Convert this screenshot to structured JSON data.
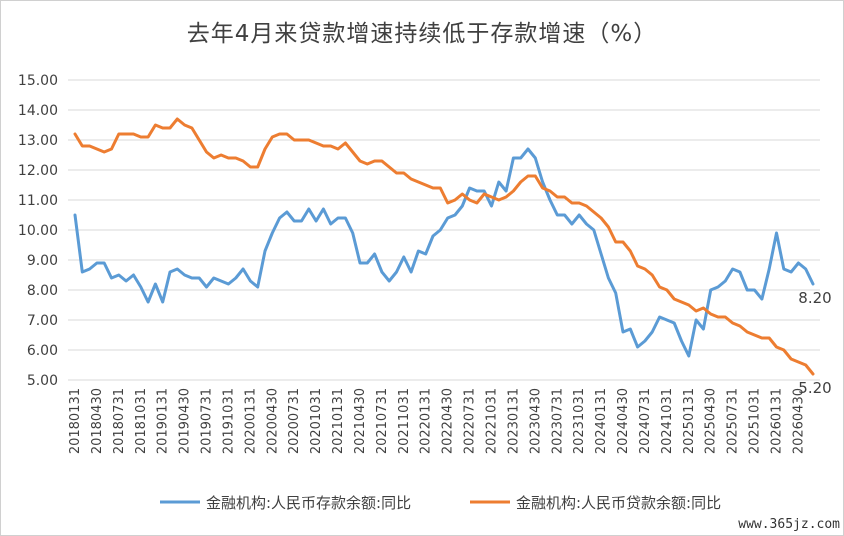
{
  "chart_data": {
    "type": "line",
    "title": "去年4月来贷款增速持续低于存款增速（%）",
    "xlabel": "",
    "ylabel": "",
    "ylim": [
      5.0,
      15.0
    ],
    "yticks": [
      "15.00",
      "14.00",
      "13.00",
      "12.00",
      "11.00",
      "10.00",
      "9.00",
      "8.00",
      "7.00",
      "6.00",
      "5.00"
    ],
    "grid": true,
    "legend_position": "bottom",
    "x": [
      "20180131",
      "20180228",
      "20180331",
      "20180430",
      "20180531",
      "20180630",
      "20180731",
      "20180831",
      "20180930",
      "20181031",
      "20181130",
      "20181231",
      "20190131",
      "20190228",
      "20190331",
      "20190430",
      "20190531",
      "20190630",
      "20190731",
      "20190831",
      "20190930",
      "20191031",
      "20191130",
      "20191231",
      "20200131",
      "20200229",
      "20200331",
      "20200430",
      "20200531",
      "20200630",
      "20200731",
      "20200831",
      "20200930",
      "20201031",
      "20201130",
      "20201231",
      "20210131",
      "20210228",
      "20210331",
      "20210430",
      "20210531",
      "20210630",
      "20210731",
      "20210831",
      "20210930",
      "20211031",
      "20211130",
      "20211231",
      "20220131",
      "20220228",
      "20220331",
      "20220430",
      "20220531",
      "20220630",
      "20220731",
      "20220831",
      "20220930",
      "20221031",
      "20221130",
      "20221231",
      "20230131",
      "20230228",
      "20230331",
      "20230430",
      "20230531",
      "20230630",
      "20230731",
      "20230831",
      "20230930",
      "20231031",
      "20231130",
      "20231231",
      "20240131",
      "20240229",
      "20240331",
      "20240430",
      "20240531",
      "20240630",
      "20240731",
      "20240831",
      "20240930",
      "20241031",
      "20241130",
      "20241231",
      "20250131",
      "20250228",
      "20250331",
      "20250430",
      "20250531",
      "20250630",
      "20250731",
      "20250831",
      "20250930",
      "20251031",
      "20251130",
      "20251231",
      "20260131",
      "20260228",
      "20260331",
      "20260430",
      "20260531",
      "20260630"
    ],
    "xtick_labels": [
      "20180131",
      "20180430",
      "20180731",
      "20181031",
      "20190131",
      "20190430",
      "20190731",
      "20191031",
      "20200131",
      "20200430",
      "20200731",
      "20201031",
      "20210131",
      "20210430",
      "20210731",
      "20211031",
      "20220131",
      "20220430",
      "20220731",
      "20221031",
      "20230131",
      "20230430",
      "20230731",
      "20231031",
      "20240131",
      "20240430",
      "20240731",
      "20241031",
      "20250131",
      "20250430",
      "20250731",
      "20251031",
      "20260131",
      "20260430"
    ],
    "series": [
      {
        "name": "金融机构:人民币存款余额:同比",
        "color": "#5B9BD5",
        "values": [
          10.5,
          8.6,
          8.7,
          8.9,
          8.9,
          8.4,
          8.5,
          8.3,
          8.5,
          8.1,
          7.6,
          8.2,
          7.6,
          8.6,
          8.7,
          8.5,
          8.4,
          8.4,
          8.1,
          8.4,
          8.3,
          8.2,
          8.4,
          8.7,
          8.3,
          8.1,
          9.3,
          9.9,
          10.4,
          10.6,
          10.3,
          10.3,
          10.7,
          10.3,
          10.7,
          10.2,
          10.4,
          10.4,
          9.9,
          8.9,
          8.9,
          9.2,
          8.6,
          8.3,
          8.6,
          9.1,
          8.6,
          9.3,
          9.2,
          9.8,
          10.0,
          10.4,
          10.5,
          10.8,
          11.4,
          11.3,
          11.3,
          10.8,
          11.6,
          11.3,
          12.4,
          12.4,
          12.7,
          12.4,
          11.6,
          11.0,
          10.5,
          10.5,
          10.2,
          10.5,
          10.2,
          10.0,
          9.2,
          8.4,
          7.9,
          6.6,
          6.7,
          6.1,
          6.3,
          6.6,
          7.1,
          7.0,
          6.9,
          6.3,
          5.8,
          7.0,
          6.7,
          8.0,
          8.1,
          8.3,
          8.7,
          8.6,
          8.0,
          8.0,
          7.7,
          8.7,
          9.9,
          8.7,
          8.6,
          8.9,
          8.7,
          8.2
        ],
        "end_label": "8.20"
      },
      {
        "name": "金融机构:人民币贷款余额:同比",
        "color": "#ED7D31",
        "values": [
          13.2,
          12.8,
          12.8,
          12.7,
          12.6,
          12.7,
          13.2,
          13.2,
          13.2,
          13.1,
          13.1,
          13.5,
          13.4,
          13.4,
          13.7,
          13.5,
          13.4,
          13.0,
          12.6,
          12.4,
          12.5,
          12.4,
          12.4,
          12.3,
          12.1,
          12.1,
          12.7,
          13.1,
          13.2,
          13.2,
          13.0,
          13.0,
          13.0,
          12.9,
          12.8,
          12.8,
          12.7,
          12.9,
          12.6,
          12.3,
          12.2,
          12.3,
          12.3,
          12.1,
          11.9,
          11.9,
          11.7,
          11.6,
          11.5,
          11.4,
          11.4,
          10.9,
          11.0,
          11.2,
          11.0,
          10.9,
          11.2,
          11.1,
          11.0,
          11.1,
          11.3,
          11.6,
          11.8,
          11.8,
          11.4,
          11.3,
          11.1,
          11.1,
          10.9,
          10.9,
          10.8,
          10.6,
          10.4,
          10.1,
          9.6,
          9.6,
          9.3,
          8.8,
          8.7,
          8.5,
          8.1,
          8.0,
          7.7,
          7.6,
          7.5,
          7.3,
          7.4,
          7.2,
          7.1,
          7.1,
          6.9,
          6.8,
          6.6,
          6.5,
          6.4,
          6.4,
          6.1,
          6.0,
          5.7,
          5.6,
          5.5,
          5.2
        ],
        "end_label": "5.20"
      }
    ]
  },
  "watermark": "www.365jz.com"
}
